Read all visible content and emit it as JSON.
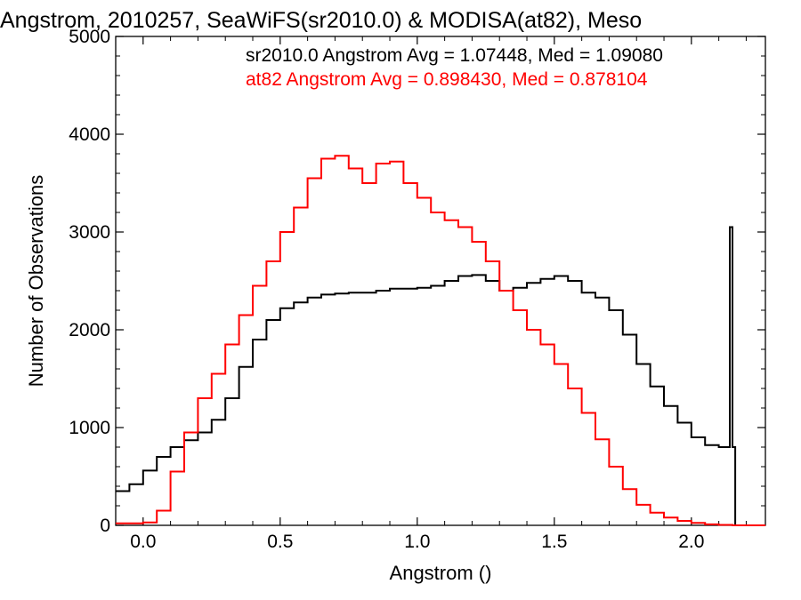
{
  "chart_data": {
    "type": "line",
    "title": "Angstrom, 2010257, SeaWiFS(sr2010.0) & MODISA(at82), Meso",
    "xlabel": "Angstrom ()",
    "ylabel": "Number of Observations",
    "xlim": [
      -0.1,
      2.27
    ],
    "ylim": [
      0,
      5000
    ],
    "xticks": [
      0.0,
      0.5,
      1.0,
      1.5,
      2.0
    ],
    "xtick_labels": [
      "0.0",
      "0.5",
      "1.0",
      "1.5",
      "2.0"
    ],
    "yticks": [
      0,
      1000,
      2000,
      3000,
      4000,
      5000
    ],
    "ytick_labels": [
      "0",
      "1000",
      "2000",
      "3000",
      "4000",
      "5000"
    ],
    "grid": false,
    "annotations": [
      {
        "text": "sr2010.0 Angstrom Avg = 1.07448, Med = 1.09080",
        "color": "#000000"
      },
      {
        "text": "at82 Angstrom Avg = 0.898430, Med = 0.878104",
        "color": "#ff0000"
      }
    ],
    "series": [
      {
        "color": "#000000",
        "style": "step",
        "x": [
          -0.1,
          -0.05,
          0.0,
          0.05,
          0.1,
          0.15,
          0.2,
          0.25,
          0.3,
          0.35,
          0.4,
          0.45,
          0.5,
          0.55,
          0.6,
          0.65,
          0.7,
          0.75,
          0.8,
          0.85,
          0.9,
          0.95,
          1.0,
          1.05,
          1.1,
          1.15,
          1.2,
          1.25,
          1.3,
          1.35,
          1.4,
          1.45,
          1.5,
          1.55,
          1.6,
          1.65,
          1.7,
          1.75,
          1.8,
          1.85,
          1.9,
          1.95,
          2.0,
          2.05,
          2.1,
          2.13,
          2.14,
          2.15,
          2.16,
          2.27
        ],
        "y": [
          350,
          420,
          560,
          700,
          800,
          870,
          950,
          1080,
          1300,
          1620,
          1900,
          2100,
          2220,
          2280,
          2330,
          2360,
          2370,
          2380,
          2380,
          2400,
          2420,
          2420,
          2430,
          2450,
          2500,
          2550,
          2560,
          2500,
          2400,
          2430,
          2480,
          2520,
          2550,
          2500,
          2380,
          2330,
          2200,
          1950,
          1650,
          1420,
          1220,
          1050,
          900,
          820,
          800,
          800,
          3050,
          800,
          0,
          0
        ]
      },
      {
        "color": "#ff0000",
        "style": "step",
        "x": [
          -0.1,
          -0.05,
          0.0,
          0.05,
          0.1,
          0.15,
          0.2,
          0.25,
          0.3,
          0.35,
          0.4,
          0.45,
          0.5,
          0.55,
          0.6,
          0.65,
          0.7,
          0.75,
          0.8,
          0.85,
          0.9,
          0.95,
          1.0,
          1.05,
          1.1,
          1.15,
          1.2,
          1.25,
          1.3,
          1.35,
          1.4,
          1.45,
          1.5,
          1.55,
          1.6,
          1.65,
          1.7,
          1.75,
          1.8,
          1.85,
          1.9,
          1.95,
          2.0,
          2.05,
          2.1,
          2.15,
          2.2,
          2.27
        ],
        "y": [
          20,
          20,
          30,
          150,
          550,
          950,
          1300,
          1550,
          1850,
          2150,
          2450,
          2700,
          3000,
          3250,
          3550,
          3750,
          3780,
          3650,
          3500,
          3700,
          3720,
          3500,
          3350,
          3200,
          3120,
          3050,
          2900,
          2700,
          2400,
          2200,
          2000,
          1850,
          1650,
          1400,
          1150,
          880,
          600,
          370,
          210,
          130,
          80,
          45,
          25,
          10,
          5,
          0,
          0,
          0
        ]
      }
    ]
  }
}
